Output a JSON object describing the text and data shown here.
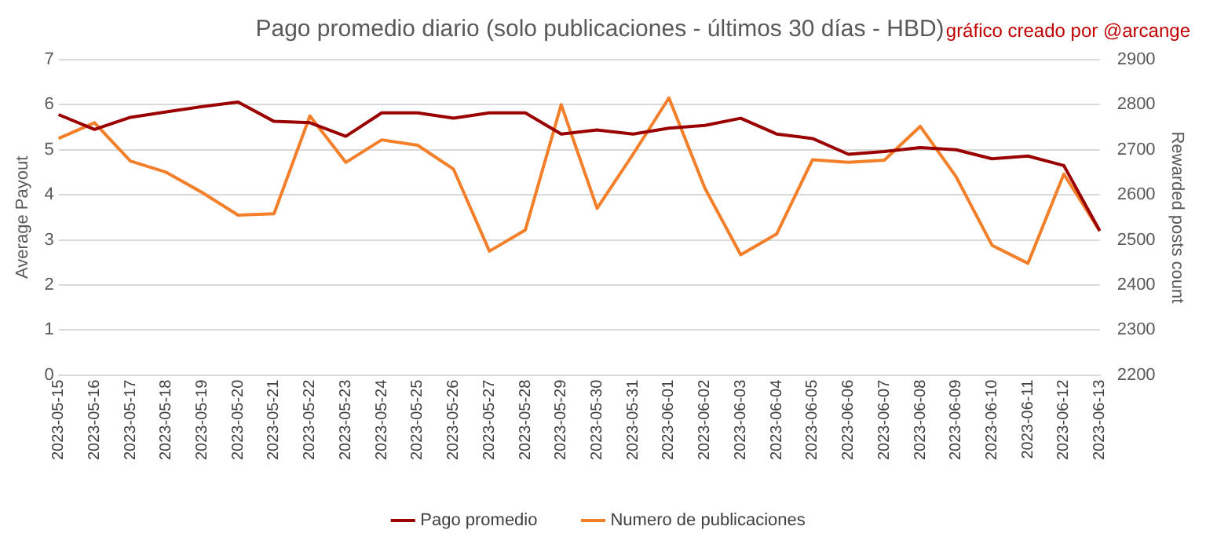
{
  "chart_data": {
    "type": "line",
    "title": "Pago promedio diario (solo publicaciones - últimos 30 días - HBD)",
    "annotations": [
      "gráfico creado por @arcange"
    ],
    "ylabel": "Average Payout",
    "y2label": "Rewarded posts count",
    "categories": [
      "2023-05-15",
      "2023-05-16",
      "2023-05-17",
      "2023-05-18",
      "2023-05-19",
      "2023-05-20",
      "2023-05-21",
      "2023-05-22",
      "2023-05-23",
      "2023-05-24",
      "2023-05-25",
      "2023-05-26",
      "2023-05-27",
      "2023-05-28",
      "2023-05-29",
      "2023-05-30",
      "2023-05-31",
      "2023-06-01",
      "2023-06-02",
      "2023-06-03",
      "2023-06-04",
      "2023-06-05",
      "2023-06-06",
      "2023-06-07",
      "2023-06-08",
      "2023-06-09",
      "2023-06-10",
      "2023-06-11",
      "2023-06-12",
      "2023-06-13"
    ],
    "series": [
      {
        "name": "Pago promedio",
        "color": "#9b0000",
        "values": [
          5.78,
          5.45,
          5.72,
          5.84,
          5.96,
          6.06,
          5.63,
          5.6,
          5.3,
          5.82,
          5.82,
          5.7,
          5.82,
          5.82,
          5.35,
          5.44,
          5.35,
          5.48,
          5.54,
          5.7,
          5.35,
          5.25,
          4.9,
          4.96,
          5.05,
          5.0,
          4.8,
          4.86,
          4.65,
          3.2
        ]
      },
      {
        "name": "Numero de publicaciones",
        "color": "#f47f2a",
        "axis": "y2",
        "values": [
          2725,
          2760,
          2675,
          2650,
          2605,
          2555,
          2558,
          2775,
          2672,
          2722,
          2710,
          2657,
          2475,
          2522,
          2800,
          2570,
          2690,
          2815,
          2615,
          2467,
          2513,
          2678,
          2672,
          2677,
          2752,
          2640,
          2488,
          2448,
          2646,
          2520
        ]
      }
    ],
    "ylim": [
      0,
      7
    ],
    "yticks": [
      0,
      1,
      2,
      3,
      4,
      5,
      6,
      7
    ],
    "y2lim": [
      2200,
      2900
    ],
    "y2ticks": [
      2200,
      2300,
      2400,
      2500,
      2600,
      2700,
      2800,
      2900
    ],
    "grid": "y",
    "legend": "bottom",
    "marker": "none",
    "line_style": "solid"
  }
}
